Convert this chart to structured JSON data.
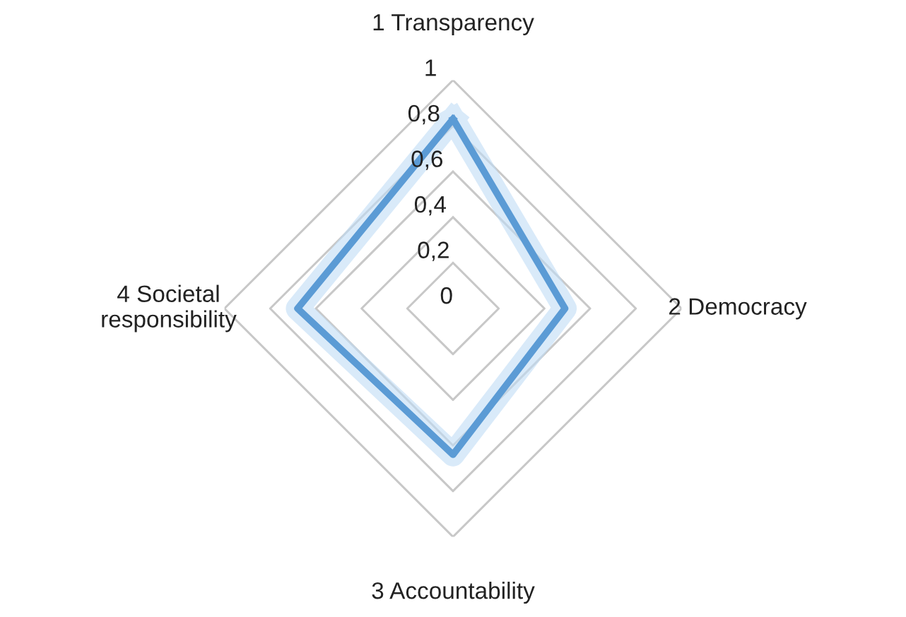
{
  "chart_data": {
    "type": "radar",
    "categories": [
      "1 Transparency",
      "2 Democracy",
      "3 Accountability",
      "4 Societal\nresponsibility"
    ],
    "series": [
      {
        "color": "#5b9bd5",
        "values": [
          0.83,
          0.49,
          0.64,
          0.68
        ]
      }
    ],
    "ylim": [
      0,
      1
    ],
    "yticks": [
      0,
      {
        "value": 0.2,
        "label": "0,2"
      },
      {
        "value": 0.4,
        "label": "0,4"
      },
      {
        "value": 0.6,
        "label": "0,6"
      },
      {
        "value": 0.8,
        "label": "0,8"
      },
      1
    ],
    "grid": true,
    "legend": false
  }
}
